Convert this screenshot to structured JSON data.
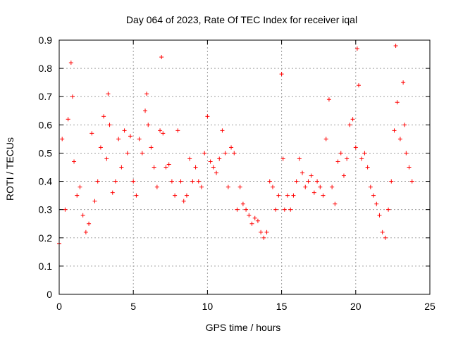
{
  "chart_data": {
    "type": "scatter",
    "title": "Day 064 of 2023, Rate Of TEC Index for receiver iqal",
    "xlabel": "GPS time / hours",
    "ylabel": "ROTI / TECUs",
    "xlim": [
      0,
      25
    ],
    "ylim": [
      0,
      0.9
    ],
    "xticks": [
      "0",
      "5",
      "10",
      "15",
      "20",
      "25"
    ],
    "yticks": [
      "0",
      "0.1",
      "0.2",
      "0.3",
      "0.4",
      "0.5",
      "0.6",
      "0.7",
      "0.8",
      "0.9"
    ],
    "grid": true,
    "marker": "plus",
    "color": "#ff0000",
    "series": [
      {
        "x": [
          0.0,
          0.2,
          0.4,
          0.6,
          0.8,
          0.9,
          1.0,
          1.2,
          1.4,
          1.6,
          1.8,
          2.0,
          2.2,
          2.4,
          2.6,
          2.8,
          3.0,
          3.2,
          3.3,
          3.4,
          3.6,
          3.8,
          4.0,
          4.2,
          4.4,
          4.6,
          4.8,
          5.0,
          5.2,
          5.4,
          5.6,
          5.8,
          5.9,
          6.0,
          6.2,
          6.4,
          6.6,
          6.8,
          6.9,
          7.0,
          7.2,
          7.4,
          7.6,
          7.8,
          8.0,
          8.2,
          8.4,
          8.6,
          8.8,
          9.0,
          9.2,
          9.4,
          9.6,
          9.8,
          10.0,
          10.2,
          10.4,
          10.6,
          10.8,
          11.0,
          11.2,
          11.4,
          11.6,
          11.8,
          12.0,
          12.2,
          12.4,
          12.6,
          12.8,
          13.0,
          13.2,
          13.4,
          13.6,
          13.8,
          14.0,
          14.2,
          14.4,
          14.6,
          14.8,
          15.0,
          15.1,
          15.2,
          15.4,
          15.6,
          15.8,
          16.0,
          16.2,
          16.4,
          16.6,
          16.8,
          17.0,
          17.2,
          17.4,
          17.6,
          17.8,
          18.0,
          18.2,
          18.4,
          18.6,
          18.8,
          19.0,
          19.2,
          19.4,
          19.6,
          19.8,
          20.0,
          20.1,
          20.2,
          20.4,
          20.6,
          20.8,
          21.0,
          21.2,
          21.4,
          21.6,
          21.8,
          22.0,
          22.2,
          22.4,
          22.6,
          22.7,
          22.8,
          23.0,
          23.2,
          23.3,
          23.4,
          23.6,
          23.8
        ],
        "y": [
          0.18,
          0.55,
          0.3,
          0.62,
          0.82,
          0.7,
          0.47,
          0.35,
          0.38,
          0.28,
          0.22,
          0.25,
          0.57,
          0.33,
          0.4,
          0.52,
          0.63,
          0.48,
          0.71,
          0.6,
          0.36,
          0.4,
          0.55,
          0.45,
          0.58,
          0.5,
          0.56,
          0.4,
          0.35,
          0.55,
          0.5,
          0.65,
          0.71,
          0.6,
          0.52,
          0.45,
          0.38,
          0.58,
          0.84,
          0.57,
          0.45,
          0.46,
          0.4,
          0.35,
          0.58,
          0.4,
          0.33,
          0.35,
          0.48,
          0.4,
          0.45,
          0.4,
          0.38,
          0.5,
          0.63,
          0.47,
          0.45,
          0.43,
          0.48,
          0.58,
          0.5,
          0.38,
          0.52,
          0.5,
          0.3,
          0.38,
          0.32,
          0.3,
          0.28,
          0.25,
          0.27,
          0.26,
          0.22,
          0.2,
          0.22,
          0.4,
          0.38,
          0.3,
          0.35,
          0.78,
          0.48,
          0.3,
          0.35,
          0.3,
          0.35,
          0.4,
          0.48,
          0.43,
          0.38,
          0.4,
          0.42,
          0.36,
          0.4,
          0.38,
          0.35,
          0.55,
          0.69,
          0.38,
          0.32,
          0.47,
          0.5,
          0.42,
          0.48,
          0.6,
          0.62,
          0.52,
          0.87,
          0.74,
          0.48,
          0.5,
          0.45,
          0.38,
          0.35,
          0.32,
          0.28,
          0.22,
          0.2,
          0.3,
          0.4,
          0.58,
          0.88,
          0.68,
          0.55,
          0.75,
          0.6,
          0.5,
          0.45,
          0.4
        ]
      }
    ]
  }
}
